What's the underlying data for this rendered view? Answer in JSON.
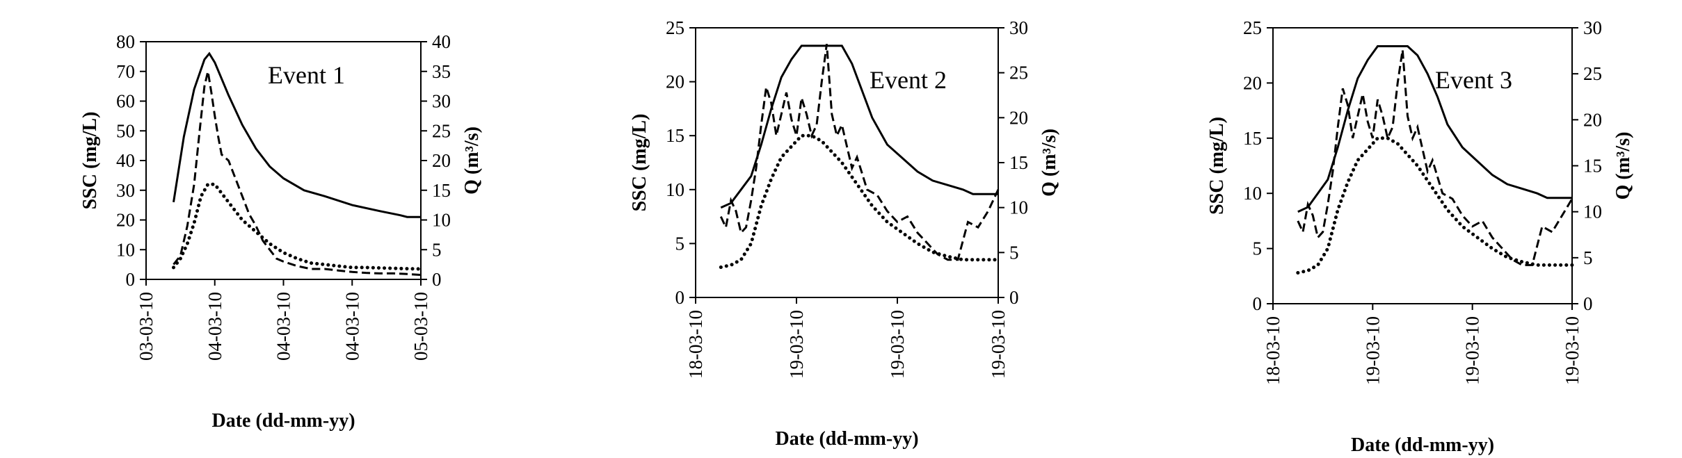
{
  "chart_data": [
    {
      "type": "line",
      "title": "",
      "annotation": "Event 1",
      "xlabel": "Date (dd-mm-yy)",
      "ylabel": "SSC (mg/L)",
      "y2label": "Q (m³/s)",
      "x_tick_labels": [
        "03-03-10",
        "04-03-10",
        "04-03-10",
        "04-03-10",
        "05-03-10"
      ],
      "xlim": [
        0,
        4
      ],
      "ylim": [
        0,
        80
      ],
      "y_ticks": [
        0,
        10,
        20,
        30,
        40,
        50,
        60,
        70,
        80
      ],
      "y2lim": [
        0,
        40
      ],
      "y2_ticks": [
        0,
        5,
        10,
        15,
        20,
        25,
        30,
        35,
        40
      ],
      "series": [
        {
          "style": "solid",
          "axis": "right",
          "x": [
            0.4,
            0.55,
            0.7,
            0.85,
            0.92,
            1.0,
            1.2,
            1.4,
            1.6,
            1.8,
            2.0,
            2.3,
            2.6,
            3.0,
            3.4,
            3.7,
            3.8,
            4.0
          ],
          "values": [
            13,
            24,
            32,
            37,
            38,
            36.5,
            31,
            26,
            22,
            19,
            17,
            15,
            14,
            12.5,
            11.5,
            10.8,
            10.5,
            10.5
          ]
        },
        {
          "style": "dashed",
          "axis": "left",
          "x": [
            0.4,
            0.5,
            0.6,
            0.7,
            0.78,
            0.85,
            0.9,
            0.95,
            1.0,
            1.05,
            1.1,
            1.2,
            1.3,
            1.4,
            1.5,
            1.6,
            1.7,
            1.8,
            1.9,
            2.0,
            2.2,
            2.4,
            2.6,
            2.8,
            3.0,
            3.2,
            3.4,
            3.6,
            3.8,
            4.0
          ],
          "values": [
            5,
            8,
            18,
            32,
            50,
            65,
            70,
            63,
            55,
            48,
            42,
            40,
            34,
            28,
            22,
            18,
            13,
            10,
            7,
            6,
            4.5,
            3.5,
            3.5,
            3,
            2.5,
            2.2,
            2,
            2,
            1.8,
            1.5
          ]
        },
        {
          "style": "dotted",
          "axis": "left",
          "x": [
            0.4,
            0.5,
            0.6,
            0.7,
            0.8,
            0.9,
            1.0,
            1.1,
            1.2,
            1.3,
            1.4,
            1.6,
            1.8,
            2.0,
            2.2,
            2.4,
            2.6,
            2.8,
            3.0,
            3.2,
            3.5,
            3.8,
            4.0
          ],
          "values": [
            4,
            7,
            12,
            19,
            28,
            32,
            32,
            29,
            26,
            23,
            20,
            16,
            12,
            9,
            7,
            5.5,
            5,
            4.5,
            4,
            4,
            3.8,
            3.6,
            3.5
          ]
        }
      ]
    },
    {
      "type": "line",
      "title": "",
      "annotation": "Event 2",
      "xlabel": "Date (dd-mm-yy)",
      "ylabel": "SSC (mg/L)",
      "y2label": "Q (m³/s)",
      "x_tick_labels": [
        "18-03-10",
        "19-03-10",
        "19-03-10",
        "19-03-10"
      ],
      "xlim": [
        0,
        3
      ],
      "ylim": [
        0,
        25
      ],
      "y_ticks": [
        0,
        5,
        10,
        15,
        20,
        25
      ],
      "y2lim": [
        0,
        30
      ],
      "y2_ticks": [
        0,
        5,
        10,
        15,
        20,
        25,
        30
      ],
      "series": [
        {
          "style": "solid",
          "axis": "right",
          "x": [
            0.25,
            0.35,
            0.45,
            0.55,
            0.65,
            0.75,
            0.85,
            0.95,
            1.05,
            1.15,
            1.25,
            1.35,
            1.45,
            1.55,
            1.65,
            1.75,
            1.9,
            2.05,
            2.2,
            2.35,
            2.5,
            2.65,
            2.75,
            2.85,
            3.0
          ],
          "values": [
            10,
            10.5,
            12,
            13.5,
            17,
            21,
            24.5,
            26.5,
            28,
            28,
            28,
            28,
            28,
            26,
            23,
            20,
            17,
            15.5,
            14,
            13,
            12.5,
            12,
            11.5,
            11.5,
            11.5
          ]
        },
        {
          "style": "dashed",
          "axis": "left",
          "x": [
            0.25,
            0.3,
            0.35,
            0.4,
            0.45,
            0.5,
            0.55,
            0.6,
            0.65,
            0.7,
            0.75,
            0.8,
            0.85,
            0.9,
            0.95,
            1.0,
            1.05,
            1.1,
            1.15,
            1.2,
            1.25,
            1.3,
            1.35,
            1.4,
            1.45,
            1.5,
            1.55,
            1.6,
            1.65,
            1.7,
            1.8,
            1.9,
            2.0,
            2.1,
            2.2,
            2.3,
            2.4,
            2.5,
            2.6,
            2.7,
            2.8,
            2.9,
            3.0
          ],
          "values": [
            7.5,
            6.5,
            9,
            8,
            6,
            6.5,
            9,
            12,
            16,
            19.5,
            18,
            15,
            17,
            19,
            16.5,
            15,
            18.5,
            17,
            15,
            16,
            20,
            23.5,
            17,
            15,
            16,
            14,
            12,
            13,
            11.5,
            10,
            9.5,
            8,
            7,
            7.5,
            6,
            5,
            4,
            3.5,
            3.5,
            7,
            6.5,
            8,
            10
          ]
        },
        {
          "style": "dotted",
          "axis": "left",
          "x": [
            0.25,
            0.35,
            0.45,
            0.55,
            0.65,
            0.75,
            0.85,
            0.95,
            1.05,
            1.15,
            1.25,
            1.35,
            1.45,
            1.6,
            1.75,
            1.9,
            2.05,
            2.2,
            2.35,
            2.5,
            2.65,
            2.8,
            3.0
          ],
          "values": [
            2.8,
            3,
            3.5,
            5,
            8.5,
            11,
            13,
            14,
            15,
            15,
            14.5,
            13.5,
            12.5,
            10.5,
            8.5,
            7,
            6,
            5,
            4.2,
            3.8,
            3.5,
            3.5,
            3.5
          ]
        }
      ]
    },
    {
      "type": "line",
      "title": "",
      "annotation": "Event 3",
      "xlabel": "Date (dd-mm-yy)",
      "ylabel": "SSC (mg/L)",
      "y2label": "Q (m³/s)",
      "x_tick_labels": [
        "18-03-10",
        "19-03-10",
        "19-03-10",
        "19-03-10"
      ],
      "xlim": [
        0,
        3
      ],
      "ylim": [
        0,
        25
      ],
      "y_ticks": [
        0,
        5,
        10,
        15,
        20,
        25
      ],
      "y2lim": [
        0,
        30
      ],
      "y2_ticks": [
        0,
        5,
        10,
        15,
        20,
        25,
        30
      ],
      "series": [
        {
          "style": "solid",
          "axis": "right",
          "x": [
            0.25,
            0.35,
            0.45,
            0.55,
            0.65,
            0.75,
            0.85,
            0.95,
            1.05,
            1.15,
            1.25,
            1.35,
            1.45,
            1.55,
            1.65,
            1.75,
            1.9,
            2.05,
            2.2,
            2.35,
            2.5,
            2.65,
            2.75,
            2.85,
            3.0
          ],
          "values": [
            10,
            10.5,
            12,
            13.5,
            17,
            21,
            24.5,
            26.5,
            28,
            28,
            28,
            28,
            27,
            25,
            22.5,
            19.5,
            17,
            15.5,
            14,
            13,
            12.5,
            12,
            11.5,
            11.5,
            11.5
          ]
        },
        {
          "style": "dashed",
          "axis": "left",
          "x": [
            0.25,
            0.3,
            0.35,
            0.4,
            0.45,
            0.5,
            0.55,
            0.6,
            0.65,
            0.7,
            0.75,
            0.8,
            0.85,
            0.9,
            0.95,
            1.0,
            1.05,
            1.1,
            1.15,
            1.2,
            1.25,
            1.3,
            1.35,
            1.4,
            1.45,
            1.5,
            1.55,
            1.6,
            1.65,
            1.7,
            1.8,
            1.9,
            2.0,
            2.1,
            2.2,
            2.3,
            2.4,
            2.5,
            2.6,
            2.7,
            2.8,
            2.9,
            3.0
          ],
          "values": [
            7.5,
            6.5,
            9,
            8,
            6,
            6.5,
            9,
            12,
            16,
            19.5,
            18,
            15,
            17,
            19,
            16.5,
            15,
            18.5,
            17,
            15,
            16,
            20,
            23,
            17,
            15,
            16,
            14,
            12,
            13,
            11.5,
            10,
            9.5,
            8,
            7,
            7.5,
            6,
            5,
            4,
            3.5,
            3.5,
            7,
            6.5,
            8,
            9.5
          ]
        },
        {
          "style": "dotted",
          "axis": "left",
          "x": [
            0.25,
            0.35,
            0.45,
            0.55,
            0.65,
            0.75,
            0.85,
            0.95,
            1.05,
            1.15,
            1.25,
            1.35,
            1.45,
            1.6,
            1.75,
            1.9,
            2.05,
            2.2,
            2.35,
            2.5,
            2.65,
            2.8,
            3.0
          ],
          "values": [
            2.8,
            3,
            3.5,
            5,
            8.5,
            11,
            13,
            14,
            15,
            15,
            14.5,
            13.5,
            12.5,
            10.5,
            8.5,
            7,
            6,
            5,
            4.2,
            3.8,
            3.5,
            3.5,
            3.5
          ]
        }
      ]
    }
  ]
}
